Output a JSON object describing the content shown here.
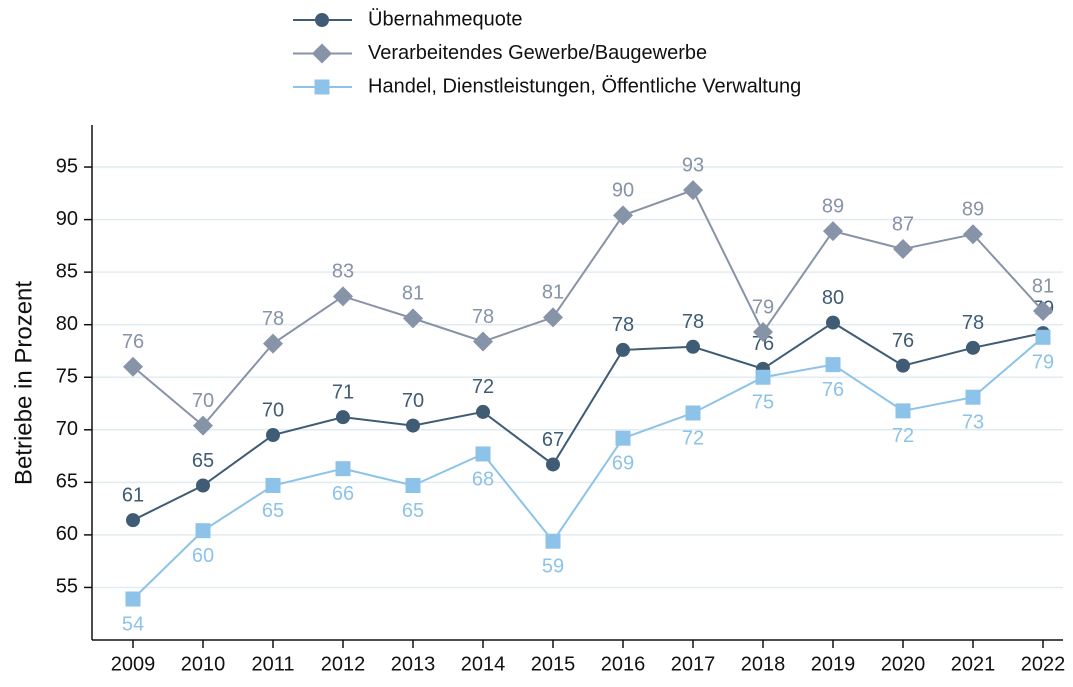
{
  "chart_data": {
    "type": "line",
    "y_label": "Betriebe in Prozent",
    "categories": [
      "2009",
      "2010",
      "2011",
      "2012",
      "2013",
      "2014",
      "2015",
      "2016",
      "2017",
      "2018",
      "2019",
      "2020",
      "2021",
      "2022"
    ],
    "series": [
      {
        "name": "Übernahmequote",
        "color": "#3f5c74",
        "marker": "circle",
        "values": [
          61.4,
          64.7,
          69.5,
          71.2,
          70.4,
          71.7,
          66.7,
          77.6,
          77.9,
          75.8,
          80.2,
          76.1,
          77.8,
          79.2
        ],
        "value_labels": [
          "61",
          "65",
          "70",
          "71",
          "70",
          "72",
          "67",
          "78",
          "78",
          "76",
          "80",
          "76",
          "78",
          "79"
        ]
      },
      {
        "name": "Verarbeitendes Gewerbe/Baugewerbe",
        "color": "#8793a7",
        "marker": "diamond",
        "values": [
          76.0,
          70.4,
          78.2,
          82.7,
          80.6,
          78.4,
          80.7,
          90.4,
          92.8,
          79.3,
          88.9,
          87.2,
          88.6,
          81.3
        ],
        "value_labels": [
          "76",
          "70",
          "78",
          "83",
          "81",
          "78",
          "81",
          "90",
          "93",
          "79",
          "89",
          "87",
          "89",
          "81"
        ]
      },
      {
        "name": "Handel, Dienstleistungen, Öffentliche Verwaltung",
        "color": "#8dc3e8",
        "marker": "square",
        "values": [
          53.9,
          60.4,
          64.7,
          66.3,
          64.7,
          67.7,
          59.4,
          69.2,
          71.6,
          75.0,
          76.2,
          71.8,
          73.1,
          78.8
        ],
        "value_labels": [
          "54",
          "60",
          "65",
          "66",
          "65",
          "68",
          "59",
          "69",
          "72",
          "75",
          "76",
          "72",
          "73",
          "79"
        ]
      }
    ],
    "ylim": [
      50,
      99
    ],
    "yticks": [
      55,
      60,
      65,
      70,
      75,
      80,
      85,
      90,
      95
    ],
    "grid": true
  }
}
